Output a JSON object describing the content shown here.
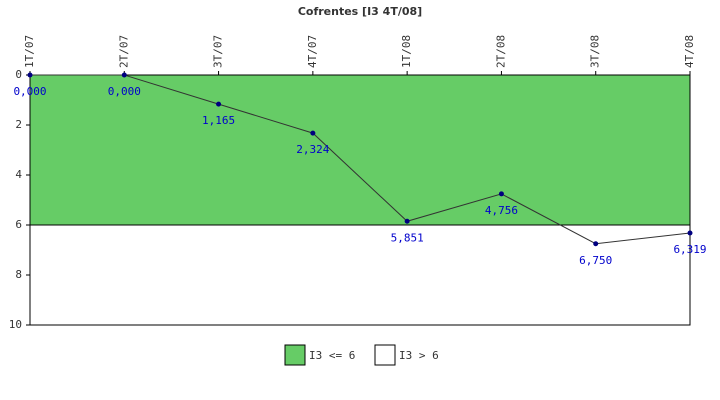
{
  "chart_data": {
    "type": "line",
    "title": "Cofrentes [I3 4T/08]",
    "categories": [
      "1T/07",
      "2T/07",
      "3T/07",
      "4T/07",
      "1T/08",
      "2T/08",
      "3T/08",
      "4T/08"
    ],
    "values": [
      0,
      0,
      1.165,
      2.324,
      5.851,
      4.756,
      6.75,
      6.319
    ],
    "value_labels": [
      "0,000",
      "0,000",
      "1,165",
      "2,324",
      "5,851",
      "4,756",
      "6,750",
      "6,319"
    ],
    "color": "#333333",
    "marker_color": "#000080",
    "label_color": "#0000cc",
    "ylim": [
      0,
      10
    ],
    "y_inverted": true,
    "yticks": [
      0,
      2,
      4,
      6,
      8,
      10
    ],
    "bands": [
      {
        "name": "I3 <= 6",
        "from": 0,
        "to": 6,
        "color": "#66cc66"
      },
      {
        "name": "I3 > 6",
        "from": 6,
        "to": 10,
        "color": "#ffffff"
      }
    ]
  }
}
